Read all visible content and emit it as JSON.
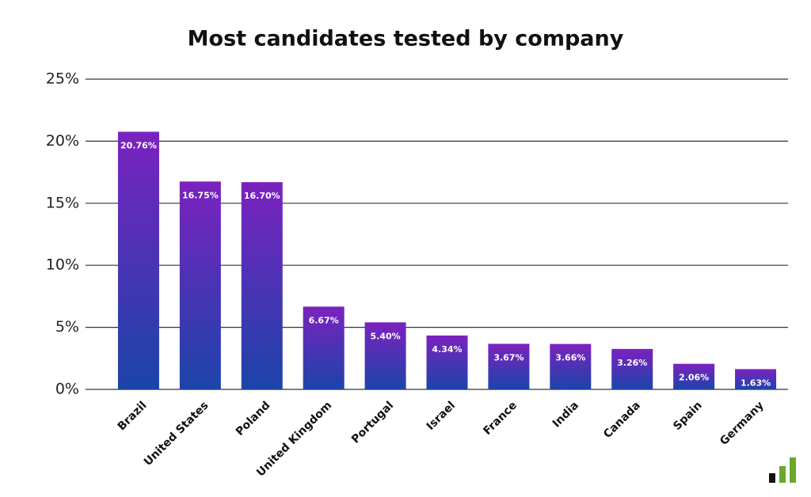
{
  "chart_data": {
    "type": "bar",
    "title": "Most candidates tested by company",
    "categories": [
      "Brazil",
      "United States",
      "Poland",
      "United Kingdom",
      "Portugal",
      "Israel",
      "France",
      "India",
      "Canada",
      "Spain",
      "Germany"
    ],
    "values": [
      20.76,
      16.75,
      16.7,
      6.67,
      5.4,
      4.34,
      3.67,
      3.66,
      3.26,
      2.06,
      1.63
    ],
    "value_labels": [
      "20.76%",
      "16.75%",
      "16.70%",
      "6.67%",
      "5.40%",
      "4.34%",
      "3.67%",
      "3.66%",
      "3.26%",
      "2.06%",
      "1.63%"
    ],
    "gradient": [
      "#7b22bf",
      "#1b44a9"
    ],
    "ylim": [
      0,
      25
    ],
    "yticks": [
      {
        "value": 0,
        "label": "0%"
      },
      {
        "value": 5,
        "label": "5%"
      },
      {
        "value": 10,
        "label": "10%"
      },
      {
        "value": 15,
        "label": "15%"
      },
      {
        "value": 20,
        "label": "20%"
      },
      {
        "value": 25,
        "label": "25%"
      }
    ],
    "grid": true
  }
}
